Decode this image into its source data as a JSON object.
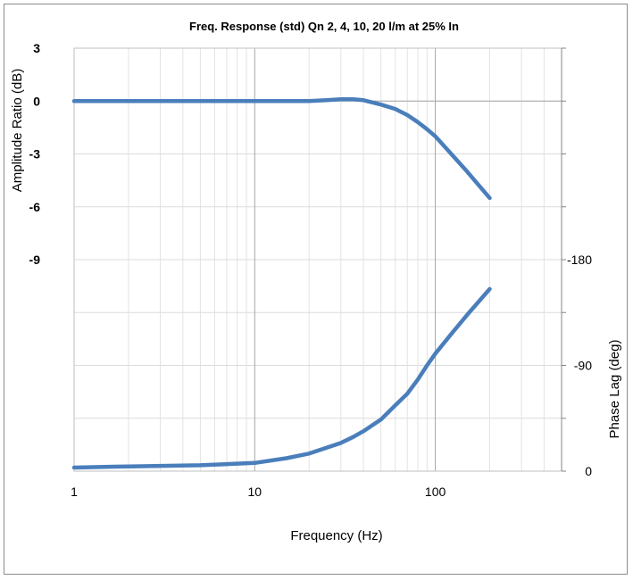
{
  "chart_data": {
    "type": "line",
    "title": "Freq. Response  (std) Qn 2, 4, 10, 20 l/m at 25% In",
    "xlabel": "Frequency (Hz)",
    "ylabel_left": "Amplitude Ratio (dB)",
    "ylabel_right": "Phase Lag (deg)",
    "x_scale": "log",
    "xlim": [
      1,
      500
    ],
    "x_ticks": [
      1,
      10,
      100
    ],
    "x_tick_labels": [
      "1",
      "10",
      "100"
    ],
    "left_axis": {
      "ylim": [
        -21,
        3
      ],
      "tick_labels": [
        {
          "value": 3,
          "label": "3"
        },
        {
          "value": 0,
          "label": "0"
        },
        {
          "value": -3,
          "label": "-3"
        },
        {
          "value": -6,
          "label": "-6"
        },
        {
          "value": -9,
          "label": "-9"
        }
      ]
    },
    "right_axis": {
      "ylim": [
        0,
        360
      ],
      "inverted": true,
      "tick_labels": [
        {
          "value": 0,
          "label": "0"
        },
        {
          "value": 90,
          "label": "-90"
        },
        {
          "value": 180,
          "label": "-180"
        }
      ]
    },
    "grid": true,
    "line_color": "#4a7ebb",
    "series": [
      {
        "axis": "left",
        "x": [
          1,
          2,
          5,
          10,
          15,
          20,
          25,
          30,
          35,
          40,
          50,
          60,
          70,
          80,
          90,
          100,
          120,
          150,
          200
        ],
        "y": [
          0,
          0,
          0,
          0,
          0,
          0,
          0.05,
          0.1,
          0.1,
          0.05,
          -0.2,
          -0.45,
          -0.8,
          -1.2,
          -1.6,
          -2.0,
          -2.9,
          -4.0,
          -5.5
        ]
      },
      {
        "axis": "right",
        "x": [
          1,
          2,
          5,
          10,
          15,
          20,
          25,
          30,
          35,
          40,
          50,
          60,
          70,
          80,
          90,
          100,
          120,
          150,
          200
        ],
        "y": [
          3,
          4,
          5,
          7,
          11,
          15,
          20,
          24,
          29,
          34,
          44,
          56,
          66,
          78,
          90,
          100,
          115,
          133,
          155
        ]
      }
    ]
  }
}
